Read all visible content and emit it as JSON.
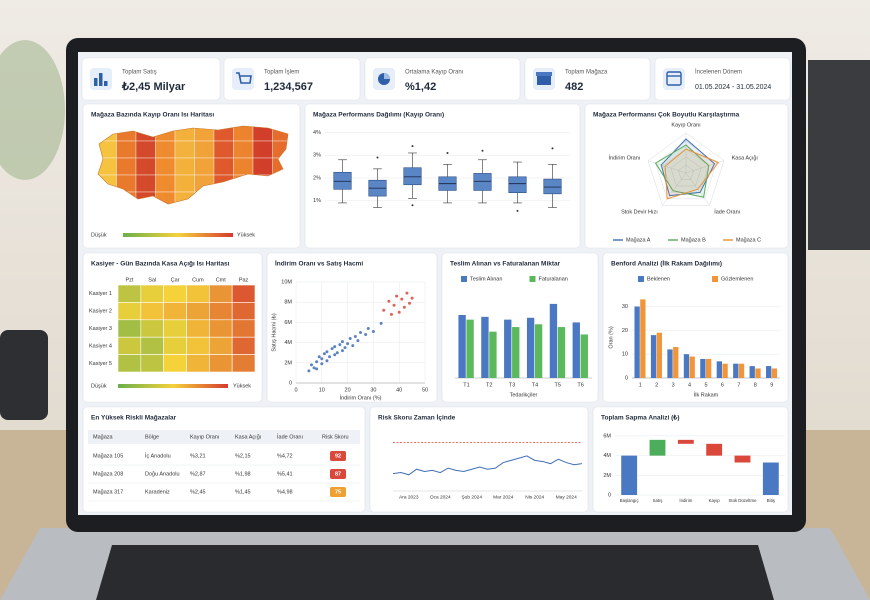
{
  "kpis": [
    {
      "label": "Toplam Satış",
      "value": "₺2,45 Milyar"
    },
    {
      "label": "Toplam İşlem",
      "value": "1,234,567"
    },
    {
      "label": "Ortalama Kayıp Oranı",
      "value": "%1,42"
    },
    {
      "label": "Toplam Mağaza",
      "value": "482"
    },
    {
      "label": "İncelenen Dönem",
      "value": "01.05.2024 - 31.05.2024"
    }
  ],
  "chart_data": [
    {
      "type": "map",
      "title": "Mağaza Bazında Kayıp Oranı Isı Haritası",
      "legend": [
        "Düşük",
        "Yüksek"
      ]
    },
    {
      "type": "box",
      "title": "Mağaza Performans Dağılımı (Kayıp Oranı)",
      "color": "#5b86c6",
      "ylim": [
        0.5,
        4.2
      ],
      "yticks": [
        {
          "value": 1,
          "label": "1%"
        },
        {
          "value": 2,
          "label": "2%"
        },
        {
          "value": 3,
          "label": "3%"
        },
        {
          "value": 4,
          "label": "4%"
        }
      ],
      "boxes": [
        {
          "min": 0.9,
          "q1": 1.5,
          "median": 1.85,
          "q3": 2.25,
          "max": 2.8,
          "outliers": []
        },
        {
          "min": 0.7,
          "q1": 1.2,
          "median": 1.55,
          "q3": 1.9,
          "max": 2.4,
          "outliers": [
            2.9
          ]
        },
        {
          "min": 1.1,
          "q1": 1.7,
          "median": 2.05,
          "q3": 2.45,
          "max": 3.1,
          "outliers": [
            3.4,
            0.8
          ]
        },
        {
          "min": 0.9,
          "q1": 1.45,
          "median": 1.75,
          "q3": 2.05,
          "max": 2.6,
          "outliers": [
            3.1
          ]
        },
        {
          "min": 0.9,
          "q1": 1.45,
          "median": 1.85,
          "q3": 2.2,
          "max": 2.8,
          "outliers": [
            3.2
          ]
        },
        {
          "min": 0.9,
          "q1": 1.35,
          "median": 1.75,
          "q3": 2.05,
          "max": 2.7,
          "outliers": [
            0.55
          ]
        },
        {
          "min": 0.7,
          "q1": 1.3,
          "median": 1.6,
          "q3": 1.95,
          "max": 2.6,
          "outliers": [
            3.3
          ]
        }
      ]
    },
    {
      "type": "radar",
      "title": "Mağaza Performansı Çok Boyutlu Karşılaştırma",
      "axes": [
        "Kayıp Oranı",
        "Kasa Açığı",
        "İade Oranı",
        "Stok Devir Hızı",
        "İndirim Oranı"
      ],
      "rlim": [
        0,
        100
      ],
      "series": [
        {
          "name": "Mağaza A",
          "color": "#3f6fb5",
          "values": [
            85,
            75,
            60,
            70,
            65
          ]
        },
        {
          "name": "Mağaza B",
          "color": "#5aa85a",
          "values": [
            70,
            60,
            75,
            55,
            80
          ]
        },
        {
          "name": "Mağaza C",
          "color": "#e8913a",
          "values": [
            60,
            85,
            50,
            80,
            55
          ]
        }
      ]
    },
    {
      "type": "heatmap",
      "title": "Kasiyer - Gün Bazında Kasa Açığı Isı Haritası",
      "columns": [
        "Pzt",
        "Sal",
        "Çar",
        "Cum",
        "Cmt",
        "Paz"
      ],
      "rows": [
        "Kasiyer 1",
        "Kasiyer 2",
        "Kasiyer 3",
        "Kasiyer 4",
        "Kasiyer 5"
      ],
      "values": [
        [
          30,
          45,
          50,
          55,
          70,
          90
        ],
        [
          45,
          55,
          60,
          65,
          75,
          85
        ],
        [
          20,
          35,
          45,
          60,
          70,
          80
        ],
        [
          35,
          25,
          45,
          55,
          65,
          85
        ],
        [
          25,
          30,
          50,
          60,
          70,
          78
        ]
      ],
      "vlim": [
        0,
        100
      ],
      "legend": [
        "Düşük",
        "Yüksek"
      ]
    },
    {
      "type": "scatter",
      "title": "İndirim Oranı vs Satış Hacmi",
      "xlabel": "İndirim Oranı (%)",
      "ylabel": "Satış Hacmi (₺)",
      "xlim": [
        0,
        50
      ],
      "xticks": [
        0,
        10,
        20,
        30,
        40,
        50
      ],
      "ylim": [
        0,
        10000000
      ],
      "yticks": [
        0,
        {
          "value": 2000000,
          "label": "2M"
        },
        {
          "value": 4000000,
          "label": "4M"
        },
        {
          "value": 6000000,
          "label": "6M"
        },
        {
          "value": 8000000,
          "label": "8M"
        },
        {
          "value": 10000000,
          "label": "10M"
        }
      ],
      "grid": true,
      "series": [
        {
          "color": "#3f6fb5",
          "x": [
            5,
            6,
            7,
            8,
            8,
            9,
            10,
            10,
            11,
            12,
            12,
            13,
            14,
            15,
            15,
            16,
            17,
            18,
            18,
            19,
            20,
            21,
            22,
            23,
            24,
            25,
            27,
            28,
            30,
            33
          ],
          "values": [
            1200000,
            1800000,
            1500000,
            2100000,
            1400000,
            2600000,
            1900000,
            2400000,
            2900000,
            2200000,
            3100000,
            2600000,
            3400000,
            2800000,
            3600000,
            3000000,
            3800000,
            3200000,
            4100000,
            3500000,
            3900000,
            4400000,
            3700000,
            4600000,
            4200000,
            5000000,
            4800000,
            5400000,
            5100000,
            5900000
          ]
        },
        {
          "color": "#d9483b",
          "x": [
            34,
            36,
            37,
            38,
            39,
            40,
            41,
            42,
            43,
            44,
            45
          ],
          "values": [
            7200000,
            8100000,
            6800000,
            7700000,
            8600000,
            7000000,
            8300000,
            7500000,
            8900000,
            7900000,
            8400000
          ]
        }
      ]
    },
    {
      "type": "grouped-bar",
      "title": "Teslim Alınan vs Faturalanan Miktar",
      "xlabel": "Tedarikçiler",
      "categories": [
        "T1",
        "T2",
        "T3",
        "T4",
        "T5",
        "T6"
      ],
      "ylim": [
        0,
        95
      ],
      "series": [
        {
          "name": "Teslim Alınan",
          "color": "#4a78c2",
          "values": [
            68,
            66,
            63,
            65,
            80,
            60
          ]
        },
        {
          "name": "Faturalanan",
          "color": "#5cb85c",
          "values": [
            63,
            50,
            55,
            58,
            55,
            47
          ]
        }
      ]
    },
    {
      "type": "grouped-bar",
      "title": "Benford Analizi (İlk Rakam Dağılımı)",
      "xlabel": "İlk Rakam",
      "ylabel": "Oran (%)",
      "categories": [
        "1",
        "2",
        "3",
        "4",
        "5",
        "6",
        "7",
        "8",
        "9"
      ],
      "ylim": [
        0,
        34
      ],
      "yticks": [
        0,
        10,
        20,
        30
      ],
      "series": [
        {
          "name": "Beklenen",
          "color": "#4a78c2",
          "values": [
            30,
            18,
            12,
            10,
            8,
            7,
            6,
            5,
            5
          ]
        },
        {
          "name": "Gözlemlenen",
          "color": "#f0953a",
          "values": [
            33,
            19,
            13,
            9,
            8,
            6,
            6,
            4,
            4
          ]
        }
      ]
    },
    {
      "type": "line",
      "title": "Risk Skoru Zaman İçinde",
      "color": "#3f6fb5",
      "threshold": 90,
      "threshold_color": "#e06050",
      "ylim": [
        50,
        95
      ],
      "categories": [
        null,
        null,
        "Ara 2023",
        null,
        null,
        null,
        "Oca 2024",
        null,
        null,
        null,
        "Şub 2024",
        null,
        null,
        null,
        "Mar 2024",
        null,
        null,
        null,
        "Nis 2024",
        null,
        null,
        null,
        "May 2024",
        null,
        null
      ],
      "values": [
        62,
        63,
        61,
        66,
        64,
        65,
        63,
        67,
        65,
        64,
        66,
        68,
        66,
        67,
        72,
        74,
        76,
        78,
        74,
        73,
        71,
        75,
        72,
        70,
        71
      ]
    },
    {
      "type": "waterfall",
      "title": "Toplam Sapma Analizi (₺)",
      "categories": [
        "Başlangıç",
        "Satış",
        "İndirim",
        "Kayıp",
        "Stok Düzeltme",
        "Bitiş"
      ],
      "values": [
        4000000,
        1600000,
        -400000,
        -1200000,
        -700000,
        3300000
      ],
      "measure": [
        "absolute",
        "relative",
        "relative",
        "relative",
        "relative",
        "total"
      ],
      "ylim": [
        0,
        6500000
      ],
      "yticks": [
        0,
        {
          "value": 2000000,
          "label": "2M"
        },
        {
          "value": 4000000,
          "label": "4M"
        },
        {
          "value": 6000000,
          "label": "6M"
        }
      ],
      "colors": {
        "total": "#4a78c2",
        "increase": "#4cae5a",
        "decrease": "#d9483b"
      }
    }
  ],
  "table": {
    "title": "En Yüksek Riskli Mağazalar",
    "headers": [
      "Mağaza",
      "Bölge",
      "Kayıp Oranı",
      "Kasa Açığı",
      "İade Oranı",
      "Risk Skoru"
    ],
    "rows": [
      [
        "Mağaza 105",
        "İç Anadolu",
        "%3,21",
        "%2,15",
        "%4,72",
        "92"
      ],
      [
        "Mağaza 208",
        "Doğu Anadolu",
        "%2,87",
        "%1,98",
        "%5,41",
        "87"
      ],
      [
        "Mağaza 317",
        "Karadeniz",
        "%2,45",
        "%1,45",
        "%4,98",
        "75"
      ]
    ],
    "badge_colors": [
      "#d9483b",
      "#d9483b",
      "#f0a030"
    ]
  }
}
